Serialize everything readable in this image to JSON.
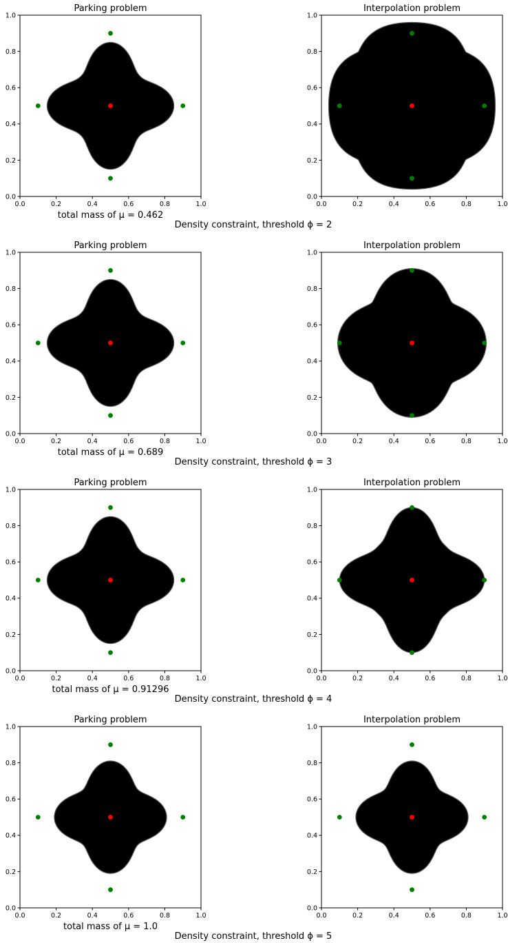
{
  "figure": {
    "rows": [
      {
        "caption": "Density constraint, threshold ϕ = 2",
        "mass_label": "total mass of μ = 0.462",
        "panels": [
          {
            "title": "Parking problem",
            "shape": {
              "r": 0.35,
              "flare": 0.55,
              "rim": 0.07,
              "p": 2.1
            }
          },
          {
            "title": "Interpolation problem",
            "shape": {
              "r": 0.46,
              "flare": 0.65,
              "rim": 0.22,
              "p": 1.3
            }
          }
        ]
      },
      {
        "caption": "Density constraint, threshold ϕ = 3",
        "mass_label": "total mass of μ = 0.689",
        "panels": [
          {
            "title": "Parking problem",
            "shape": {
              "r": 0.35,
              "flare": 0.55,
              "rim": 0.07,
              "p": 2.1
            }
          },
          {
            "title": "Interpolation problem",
            "shape": {
              "r": 0.41,
              "flare": 0.55,
              "rim": 0.16,
              "p": 1.6
            }
          }
        ]
      },
      {
        "caption": "Density constraint, threshold ϕ = 4",
        "mass_label": "total mass of μ = 0.91296",
        "panels": [
          {
            "title": "Parking problem",
            "shape": {
              "r": 0.35,
              "flare": 0.55,
              "rim": 0.07,
              "p": 2.1
            }
          },
          {
            "title": "Interpolation problem",
            "shape": {
              "r": 0.4,
              "flare": 0.55,
              "rim": 0.08,
              "p": 2.4
            }
          }
        ]
      },
      {
        "caption": "Density constraint, threshold ϕ = 5",
        "mass_label": "total mass of μ = 1.0",
        "panels": [
          {
            "title": "Parking problem",
            "shape": {
              "r": 0.31,
              "flare": 0.55,
              "rim": 0.08,
              "p": 1.9
            }
          },
          {
            "title": "Interpolation problem",
            "shape": {
              "r": 0.31,
              "flare": 0.55,
              "rim": 0.08,
              "p": 1.9
            }
          }
        ]
      }
    ]
  },
  "chart_data": {
    "type": "scatter",
    "panel_count": 8,
    "xlim": [
      0,
      1
    ],
    "ylim": [
      0,
      1
    ],
    "xticks": [
      "0.0",
      "0.2",
      "0.4",
      "0.6",
      "0.8",
      "1.0"
    ],
    "yticks": [
      "0.0",
      "0.2",
      "0.4",
      "0.6",
      "0.8",
      "1.0"
    ],
    "grid": false,
    "series": [
      {
        "color": "#008000",
        "x": [
          0.1,
          0.9,
          0.5,
          0.5
        ],
        "y": [
          0.5,
          0.5,
          0.1,
          0.9
        ]
      },
      {
        "color": "#ff0000",
        "x": [
          0.5
        ],
        "y": [
          0.5
        ]
      }
    ],
    "shape_color": "#000000"
  }
}
